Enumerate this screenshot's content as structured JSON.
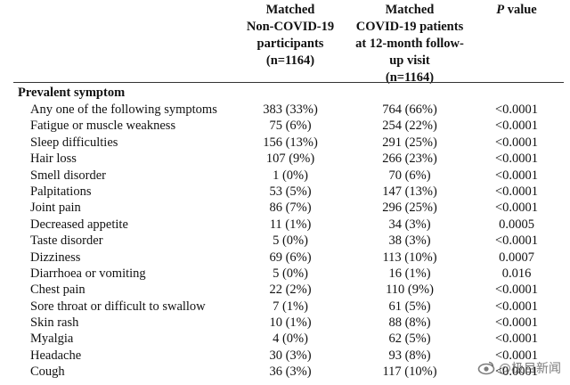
{
  "table": {
    "headers": {
      "col1": "Matched\nNon-COVID-19\nparticipants\n(n=1164)",
      "col2": "Matched\nCOVID-19 patients\nat 12-month follow-\nup visit\n(n=1164)",
      "col3_p": "P",
      "col3_rest": " value"
    },
    "section_title": "Prevalent symptom",
    "rows": [
      {
        "label": "Any one of the following symptoms",
        "non_covid": "383 (33%)",
        "covid": "764 (66%)",
        "p": "<0.0001"
      },
      {
        "label": "Fatigue or muscle weakness",
        "non_covid": "75 (6%)",
        "covid": "254 (22%)",
        "p": "<0.0001"
      },
      {
        "label": "Sleep difficulties",
        "non_covid": "156 (13%)",
        "covid": "291 (25%)",
        "p": "<0.0001"
      },
      {
        "label": "Hair loss",
        "non_covid": "107 (9%)",
        "covid": "266 (23%)",
        "p": "<0.0001"
      },
      {
        "label": "Smell disorder",
        "non_covid": "1 (0%)",
        "covid": "70 (6%)",
        "p": "<0.0001"
      },
      {
        "label": "Palpitations",
        "non_covid": "53 (5%)",
        "covid": "147 (13%)",
        "p": "<0.0001"
      },
      {
        "label": "Joint pain",
        "non_covid": "86 (7%)",
        "covid": "296 (25%)",
        "p": "<0.0001"
      },
      {
        "label": "Decreased appetite",
        "non_covid": "11 (1%)",
        "covid": "34 (3%)",
        "p": "0.0005"
      },
      {
        "label": "Taste disorder",
        "non_covid": "5 (0%)",
        "covid": "38 (3%)",
        "p": "<0.0001"
      },
      {
        "label": "Dizziness",
        "non_covid": "69 (6%)",
        "covid": "113 (10%)",
        "p": "0.0007"
      },
      {
        "label": "Diarrhoea or vomiting",
        "non_covid": "5 (0%)",
        "covid": "16 (1%)",
        "p": "0.016"
      },
      {
        "label": "Chest pain",
        "non_covid": "22 (2%)",
        "covid": "110 (9%)",
        "p": "<0.0001"
      },
      {
        "label": "Sore throat or difficult to swallow",
        "non_covid": "7 (1%)",
        "covid": "61 (5%)",
        "p": "<0.0001"
      },
      {
        "label": "Skin rash",
        "non_covid": "10 (1%)",
        "covid": "88 (8%)",
        "p": "<0.0001"
      },
      {
        "label": "Myalgia",
        "non_covid": "4 (0%)",
        "covid": "62 (5%)",
        "p": "<0.0001"
      },
      {
        "label": "Headache",
        "non_covid": "30 (3%)",
        "covid": "93 (8%)",
        "p": "<0.0001"
      },
      {
        "label": "Cough",
        "non_covid": "36 (3%)",
        "covid": "117 (10%)",
        "p": "<0.0001"
      }
    ]
  },
  "watermark": {
    "text": "@极目新闻",
    "icon": "weibo-eye-icon"
  }
}
